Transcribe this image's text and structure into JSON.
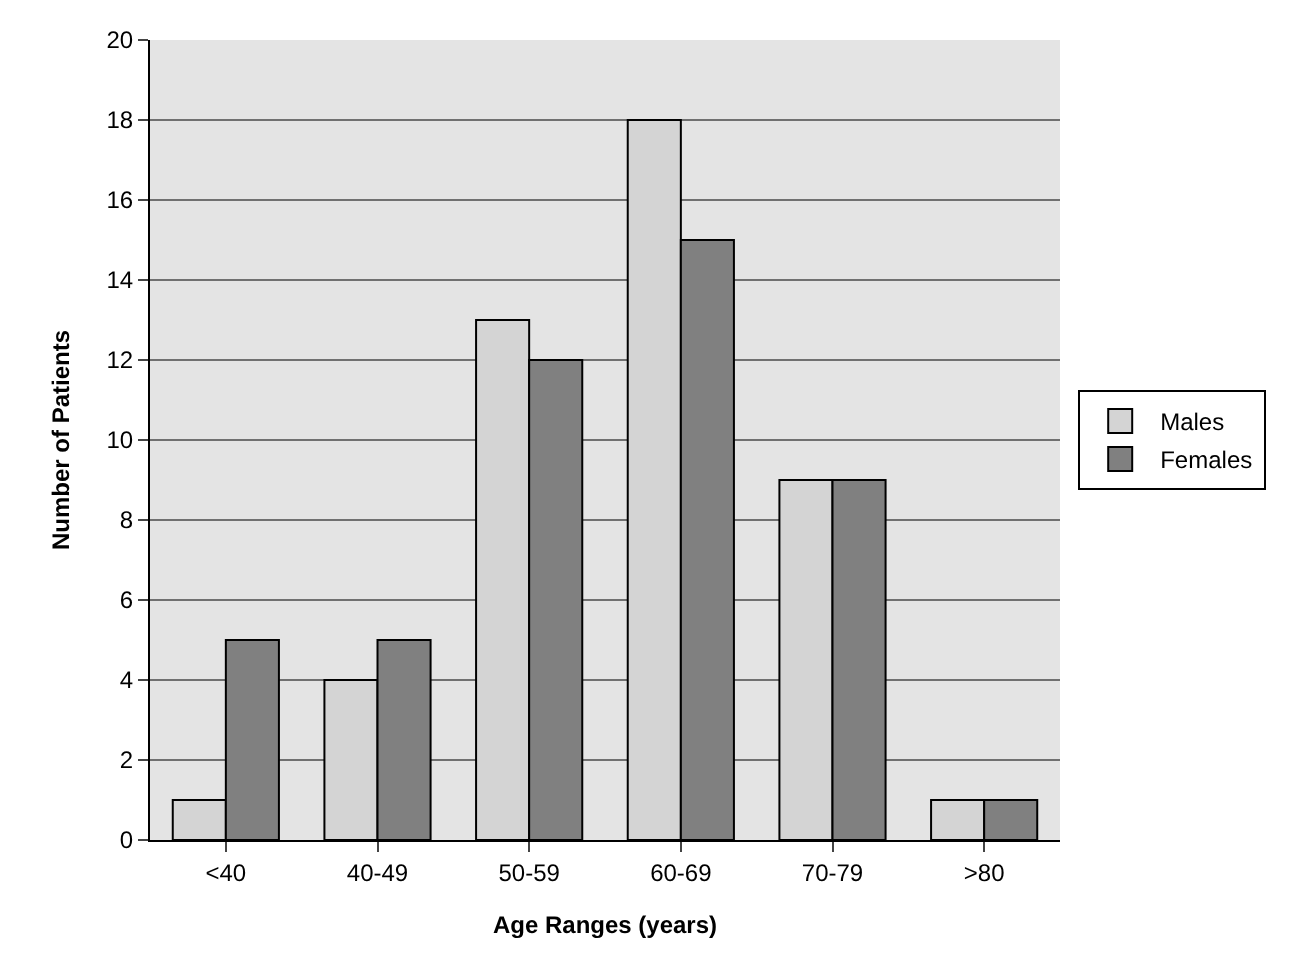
{
  "chart_data": {
    "type": "bar",
    "xlabel": "Age Ranges (years)",
    "ylabel": "Number of Patients",
    "categories": [
      "<40",
      "40-49",
      "50-59",
      "60-69",
      "70-79",
      ">80"
    ],
    "series": [
      {
        "name": "Males",
        "color": "#d4d4d4",
        "values": [
          1,
          4,
          13,
          18,
          9,
          1
        ]
      },
      {
        "name": "Females",
        "color": "#808080",
        "values": [
          5,
          5,
          12,
          15,
          9,
          1
        ]
      }
    ],
    "ylim": [
      0,
      20
    ],
    "yticks": [
      0,
      2,
      4,
      6,
      8,
      10,
      12,
      14,
      16,
      18,
      20
    ],
    "grid": "y",
    "legend": "right"
  }
}
